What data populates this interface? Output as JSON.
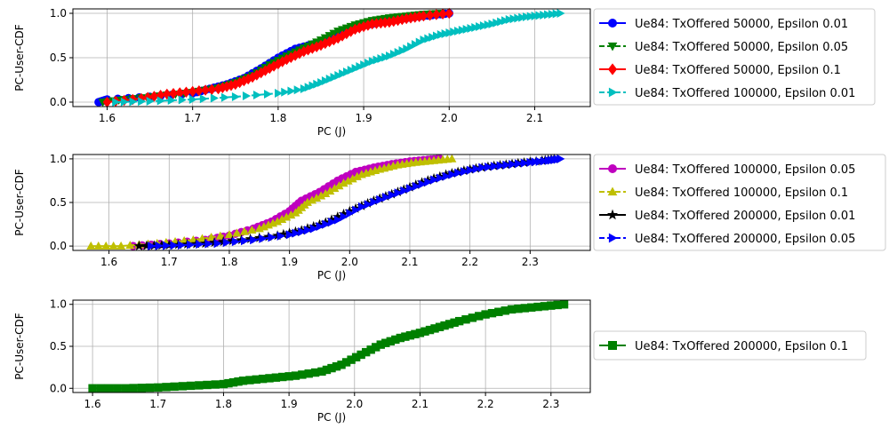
{
  "chart_data": [
    {
      "type": "line",
      "xlabel": "PC (J)",
      "ylabel": "PC-User-CDF",
      "xlim": [
        1.56,
        2.165
      ],
      "ylim": [
        -0.05,
        1.05
      ],
      "xticks": [
        "1.6",
        "1.7",
        "1.8",
        "1.9",
        "2.0",
        "2.1"
      ],
      "xtick_values": [
        1.6,
        1.7,
        1.8,
        1.9,
        2.0,
        2.1
      ],
      "yticks": [
        "0.0",
        "0.5",
        "1.0"
      ],
      "ytick_values": [
        0,
        0.5,
        1.0
      ],
      "grid": true,
      "legend_position": "outside-right",
      "series": [
        {
          "name": "Ue84: TxOffered 50000, Epsilon 0.01",
          "color": "#0000ff",
          "marker": "circle",
          "linestyle": "solid",
          "x": [
            1.59,
            1.6,
            1.65,
            1.7,
            1.72,
            1.74,
            1.76,
            1.78,
            1.8,
            1.82,
            1.84,
            1.86,
            1.88,
            1.9,
            1.92,
            1.94,
            1.96,
            1.98,
            2.0
          ],
          "y": [
            0.0,
            0.03,
            0.06,
            0.1,
            0.15,
            0.2,
            0.27,
            0.38,
            0.5,
            0.6,
            0.65,
            0.72,
            0.8,
            0.86,
            0.9,
            0.93,
            0.96,
            0.98,
            1.0
          ]
        },
        {
          "name": "Ue84: TxOffered 50000, Epsilon 0.05",
          "color": "#008000",
          "marker": "triangle-down",
          "linestyle": "dashed",
          "x": [
            1.595,
            1.62,
            1.66,
            1.7,
            1.73,
            1.75,
            1.77,
            1.79,
            1.81,
            1.83,
            1.85,
            1.87,
            1.89,
            1.91,
            1.93,
            1.95,
            1.97,
            1.99
          ],
          "y": [
            0.0,
            0.03,
            0.07,
            0.11,
            0.16,
            0.22,
            0.3,
            0.42,
            0.52,
            0.61,
            0.7,
            0.8,
            0.87,
            0.92,
            0.95,
            0.97,
            0.99,
            1.0
          ]
        },
        {
          "name": "Ue84: TxOffered 50000, Epsilon 0.1",
          "color": "#ff0000",
          "marker": "diamond",
          "linestyle": "solid",
          "x": [
            1.6,
            1.64,
            1.67,
            1.7,
            1.73,
            1.75,
            1.77,
            1.79,
            1.81,
            1.83,
            1.85,
            1.87,
            1.89,
            1.91,
            1.93,
            1.95,
            1.97,
            2.0
          ],
          "y": [
            0.0,
            0.04,
            0.09,
            0.12,
            0.15,
            0.2,
            0.28,
            0.38,
            0.48,
            0.57,
            0.64,
            0.72,
            0.82,
            0.88,
            0.9,
            0.94,
            0.97,
            1.0
          ]
        },
        {
          "name": "Ue84: TxOffered 100000, Epsilon 0.01",
          "color": "#00bfbf",
          "marker": "triangle-right",
          "linestyle": "dashed",
          "x": [
            1.61,
            1.65,
            1.7,
            1.75,
            1.8,
            1.83,
            1.85,
            1.87,
            1.89,
            1.91,
            1.93,
            1.95,
            1.97,
            1.99,
            2.01,
            2.03,
            2.05,
            2.07,
            2.09,
            2.11,
            2.13
          ],
          "y": [
            0.0,
            0.01,
            0.03,
            0.06,
            0.1,
            0.15,
            0.22,
            0.3,
            0.38,
            0.46,
            0.52,
            0.6,
            0.7,
            0.76,
            0.8,
            0.84,
            0.88,
            0.93,
            0.96,
            0.98,
            1.0
          ]
        }
      ]
    },
    {
      "type": "line",
      "xlabel": "PC (J)",
      "ylabel": "PC-User-CDF",
      "xlim": [
        1.54,
        2.4
      ],
      "ylim": [
        -0.05,
        1.05
      ],
      "xticks": [
        "1.6",
        "1.7",
        "1.8",
        "1.9",
        "2.0",
        "2.1",
        "2.2",
        "2.3"
      ],
      "xtick_values": [
        1.6,
        1.7,
        1.8,
        1.9,
        2.0,
        2.1,
        2.2,
        2.3
      ],
      "yticks": [
        "0.0",
        "0.5",
        "1.0"
      ],
      "ytick_values": [
        0,
        0.5,
        1.0
      ],
      "grid": true,
      "legend_position": "outside-right",
      "series": [
        {
          "name": "Ue84: TxOffered 100000, Epsilon 0.05",
          "color": "#bf00bf",
          "marker": "circle",
          "linestyle": "solid",
          "x": [
            1.64,
            1.7,
            1.76,
            1.8,
            1.84,
            1.87,
            1.9,
            1.92,
            1.95,
            1.98,
            2.01,
            2.04,
            2.07,
            2.1,
            2.13,
            2.15
          ],
          "y": [
            0.0,
            0.03,
            0.07,
            0.12,
            0.2,
            0.28,
            0.4,
            0.52,
            0.62,
            0.75,
            0.85,
            0.9,
            0.94,
            0.97,
            0.99,
            1.0
          ]
        },
        {
          "name": "Ue84: TxOffered 100000, Epsilon 0.1",
          "color": "#bfbf00",
          "marker": "triangle-up",
          "linestyle": "dashed",
          "x": [
            1.57,
            1.62,
            1.68,
            1.74,
            1.8,
            1.85,
            1.88,
            1.91,
            1.93,
            1.96,
            1.99,
            2.02,
            2.05,
            2.08,
            2.11,
            2.14,
            2.17
          ],
          "y": [
            0.0,
            0.0,
            0.03,
            0.07,
            0.13,
            0.2,
            0.28,
            0.38,
            0.5,
            0.6,
            0.72,
            0.82,
            0.88,
            0.93,
            0.96,
            0.98,
            1.0
          ]
        },
        {
          "name": "Ue84: TxOffered 200000, Epsilon 0.01",
          "color": "#000000",
          "marker": "star",
          "linestyle": "solid",
          "x": [
            1.65,
            1.7,
            1.76,
            1.82,
            1.88,
            1.92,
            1.96,
            2.0,
            2.04,
            2.08,
            2.12,
            2.16,
            2.2,
            2.24,
            2.28,
            2.32,
            2.34
          ],
          "y": [
            0.0,
            0.01,
            0.03,
            0.07,
            0.12,
            0.18,
            0.27,
            0.4,
            0.52,
            0.62,
            0.73,
            0.82,
            0.88,
            0.92,
            0.95,
            0.98,
            1.0
          ]
        },
        {
          "name": "Ue84: TxOffered 200000, Epsilon 0.05",
          "color": "#0000ff",
          "marker": "triangle-right",
          "linestyle": "dashed",
          "x": [
            1.67,
            1.72,
            1.78,
            1.84,
            1.9,
            1.94,
            1.98,
            2.02,
            2.06,
            2.1,
            2.14,
            2.18,
            2.22,
            2.26,
            2.3,
            2.33,
            2.35
          ],
          "y": [
            0.0,
            0.01,
            0.03,
            0.07,
            0.13,
            0.2,
            0.3,
            0.45,
            0.56,
            0.66,
            0.76,
            0.84,
            0.9,
            0.93,
            0.96,
            0.98,
            1.0
          ]
        }
      ]
    },
    {
      "type": "line",
      "xlabel": "PC (J)",
      "ylabel": "PC-User-CDF",
      "xlim": [
        1.57,
        2.36
      ],
      "ylim": [
        -0.05,
        1.05
      ],
      "xticks": [
        "1.6",
        "1.7",
        "1.8",
        "1.9",
        "2.0",
        "2.1",
        "2.2",
        "2.3"
      ],
      "xtick_values": [
        1.6,
        1.7,
        1.8,
        1.9,
        2.0,
        2.1,
        2.2,
        2.3
      ],
      "yticks": [
        "0.0",
        "0.5",
        "1.0"
      ],
      "ytick_values": [
        0,
        0.5,
        1.0
      ],
      "grid": true,
      "legend_position": "outside-right",
      "series": [
        {
          "name": "Ue84: TxOffered 200000, Epsilon 0.1",
          "color": "#008000",
          "marker": "square",
          "linestyle": "solid",
          "x": [
            1.6,
            1.65,
            1.7,
            1.75,
            1.8,
            1.83,
            1.87,
            1.91,
            1.95,
            1.98,
            2.01,
            2.04,
            2.07,
            2.1,
            2.13,
            2.16,
            2.2,
            2.24,
            2.28,
            2.32
          ],
          "y": [
            0.0,
            0.0,
            0.01,
            0.03,
            0.05,
            0.09,
            0.12,
            0.15,
            0.2,
            0.28,
            0.4,
            0.52,
            0.6,
            0.66,
            0.73,
            0.8,
            0.88,
            0.94,
            0.97,
            1.0
          ]
        }
      ]
    }
  ]
}
